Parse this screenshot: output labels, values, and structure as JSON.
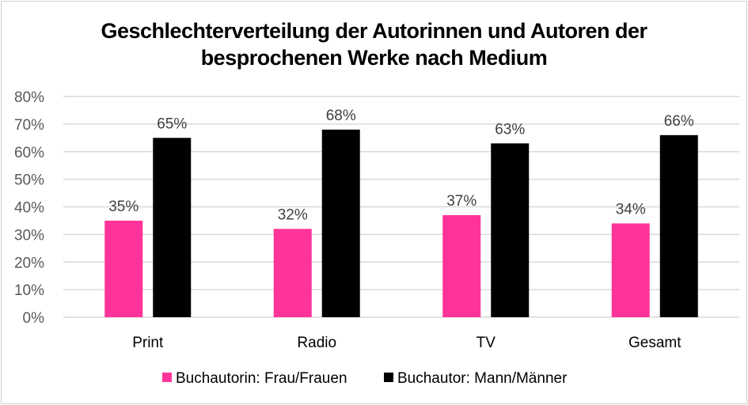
{
  "chart_data": {
    "type": "bar",
    "title": "Geschlechterverteilung der Autorinnen und Autoren der besprochenen Werke nach Medium",
    "title_lines": [
      "Geschlechterverteilung der Autorinnen und Autoren der",
      "besprochenen Werke nach Medium"
    ],
    "categories": [
      "Print",
      "Radio",
      "TV",
      "Gesamt"
    ],
    "series": [
      {
        "name": "Buchautorin: Frau/Frauen",
        "color": "#FF3399",
        "values": [
          35,
          32,
          37,
          34
        ],
        "labels": [
          "35%",
          "32%",
          "37%",
          "34%"
        ]
      },
      {
        "name": "Buchautor: Mann/Männer",
        "color": "#000000",
        "values": [
          65,
          68,
          63,
          66
        ],
        "labels": [
          "65%",
          "68%",
          "63%",
          "66%"
        ]
      }
    ],
    "ylim": [
      0,
      80
    ],
    "yticks": [
      "0%",
      "10%",
      "20%",
      "30%",
      "40%",
      "50%",
      "60%",
      "70%",
      "80%"
    ],
    "grid": true,
    "legend": "bottom",
    "xlabel": "",
    "ylabel": ""
  }
}
